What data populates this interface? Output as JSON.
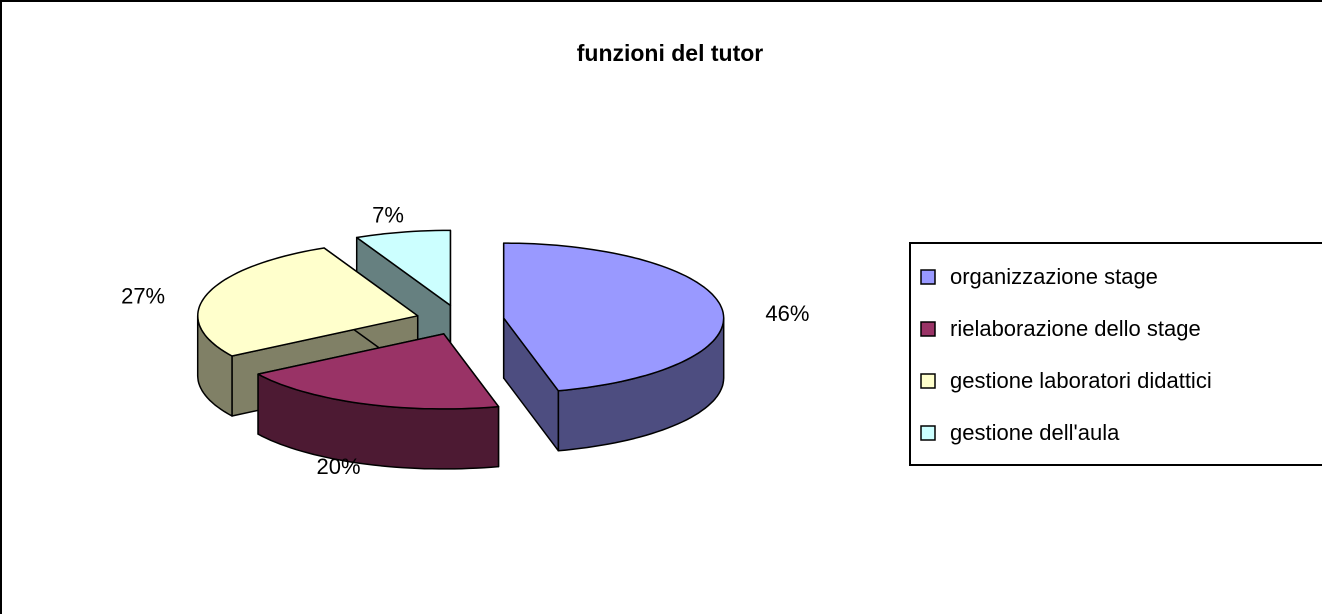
{
  "chart_data": {
    "type": "pie",
    "title": "funzioni del tutor",
    "categories": [
      "organizzazione stage",
      "rielaborazione dello stage",
      "gestione laboratori didattici",
      "gestione dell'aula"
    ],
    "values": [
      46,
      20,
      27,
      7
    ],
    "value_labels": [
      "46%",
      "20%",
      "27%",
      "7%"
    ],
    "colors": [
      "#9999ff",
      "#993366",
      "#ffffcc",
      "#ccffff"
    ],
    "legend": "right"
  }
}
